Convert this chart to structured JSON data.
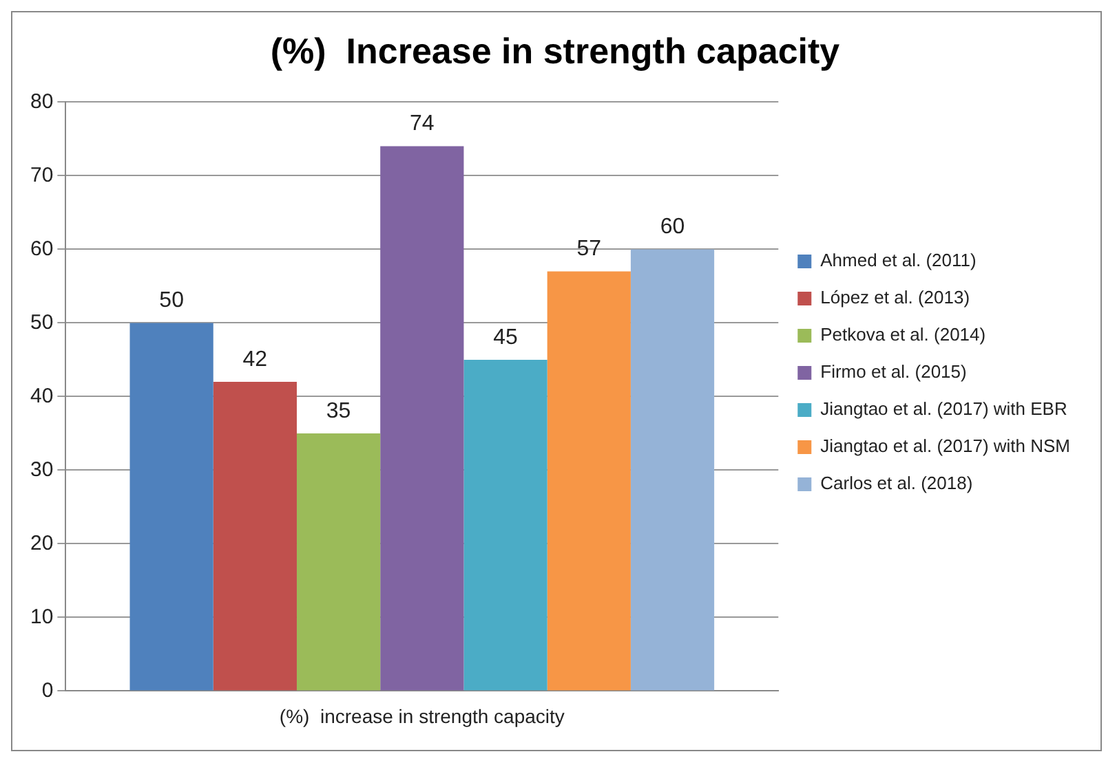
{
  "chart_data": {
    "type": "bar",
    "title": "(%)  Increase in strength capacity",
    "categories": [
      "(%)  increase in strength capacity"
    ],
    "series": [
      {
        "name": "Ahmed et al. (2011)",
        "color": "#4f81bd",
        "values": [
          50
        ]
      },
      {
        "name": "López et al. (2013)",
        "color": "#c0504d",
        "values": [
          42
        ]
      },
      {
        "name": "Petkova et al. (2014)",
        "color": "#9bbb59",
        "values": [
          35
        ]
      },
      {
        "name": "Firmo et al. (2015)",
        "color": "#8064a2",
        "values": [
          74
        ]
      },
      {
        "name": "Jiangtao et al. (2017) with EBR",
        "color": "#4bacc6",
        "values": [
          45
        ]
      },
      {
        "name": "Jiangtao et al. (2017) with NSM",
        "color": "#f79646",
        "values": [
          57
        ]
      },
      {
        "name": "Carlos et al. (2018)",
        "color": "#95b3d7",
        "values": [
          60
        ]
      }
    ],
    "ylim": [
      0,
      80
    ],
    "yticks": [
      0,
      10,
      20,
      30,
      40,
      50,
      60,
      70,
      80
    ],
    "grid": "y",
    "legend": "right",
    "data_labels": true
  }
}
